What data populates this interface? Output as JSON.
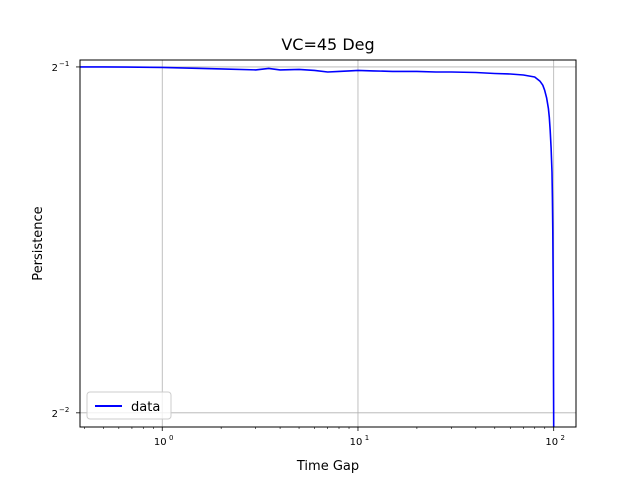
{
  "chart_data": {
    "type": "line",
    "title": "VC=45 Deg",
    "xlabel": "Time Gap",
    "ylabel": "Persistence",
    "xscale": "log",
    "yscale": "log2",
    "xlim": [
      0.38,
      130
    ],
    "ylim": [
      0.243,
      0.507
    ],
    "xticks": [
      {
        "value": 1,
        "base": "10",
        "exp": "0"
      },
      {
        "value": 10,
        "base": "10",
        "exp": "1"
      },
      {
        "value": 100,
        "base": "10",
        "exp": "2"
      }
    ],
    "yticks": [
      {
        "value": 0.5,
        "base": "2",
        "exp": "−1"
      },
      {
        "value": 0.25,
        "base": "2",
        "exp": "−2"
      }
    ],
    "grid": true,
    "legend_position": "lower-left",
    "series": [
      {
        "name": "data",
        "color": "#0000ff",
        "x": [
          0.38,
          0.5,
          1,
          2,
          3,
          3.5,
          4,
          5,
          6,
          7,
          8,
          9,
          10,
          12,
          15,
          20,
          25,
          30,
          40,
          50,
          60,
          70,
          80,
          85,
          88,
          90,
          92,
          94,
          95,
          96,
          97,
          98,
          98.5,
          99,
          99.3,
          99.6,
          99.8,
          100
        ],
        "y": [
          0.5,
          0.5,
          0.4995,
          0.498,
          0.497,
          0.4985,
          0.497,
          0.4975,
          0.4965,
          0.495,
          0.4955,
          0.496,
          0.4965,
          0.496,
          0.4955,
          0.4955,
          0.495,
          0.495,
          0.4945,
          0.4935,
          0.493,
          0.492,
          0.49,
          0.486,
          0.482,
          0.477,
          0.47,
          0.46,
          0.452,
          0.44,
          0.425,
          0.405,
          0.385,
          0.36,
          0.33,
          0.3,
          0.27,
          0.243
        ]
      }
    ]
  }
}
